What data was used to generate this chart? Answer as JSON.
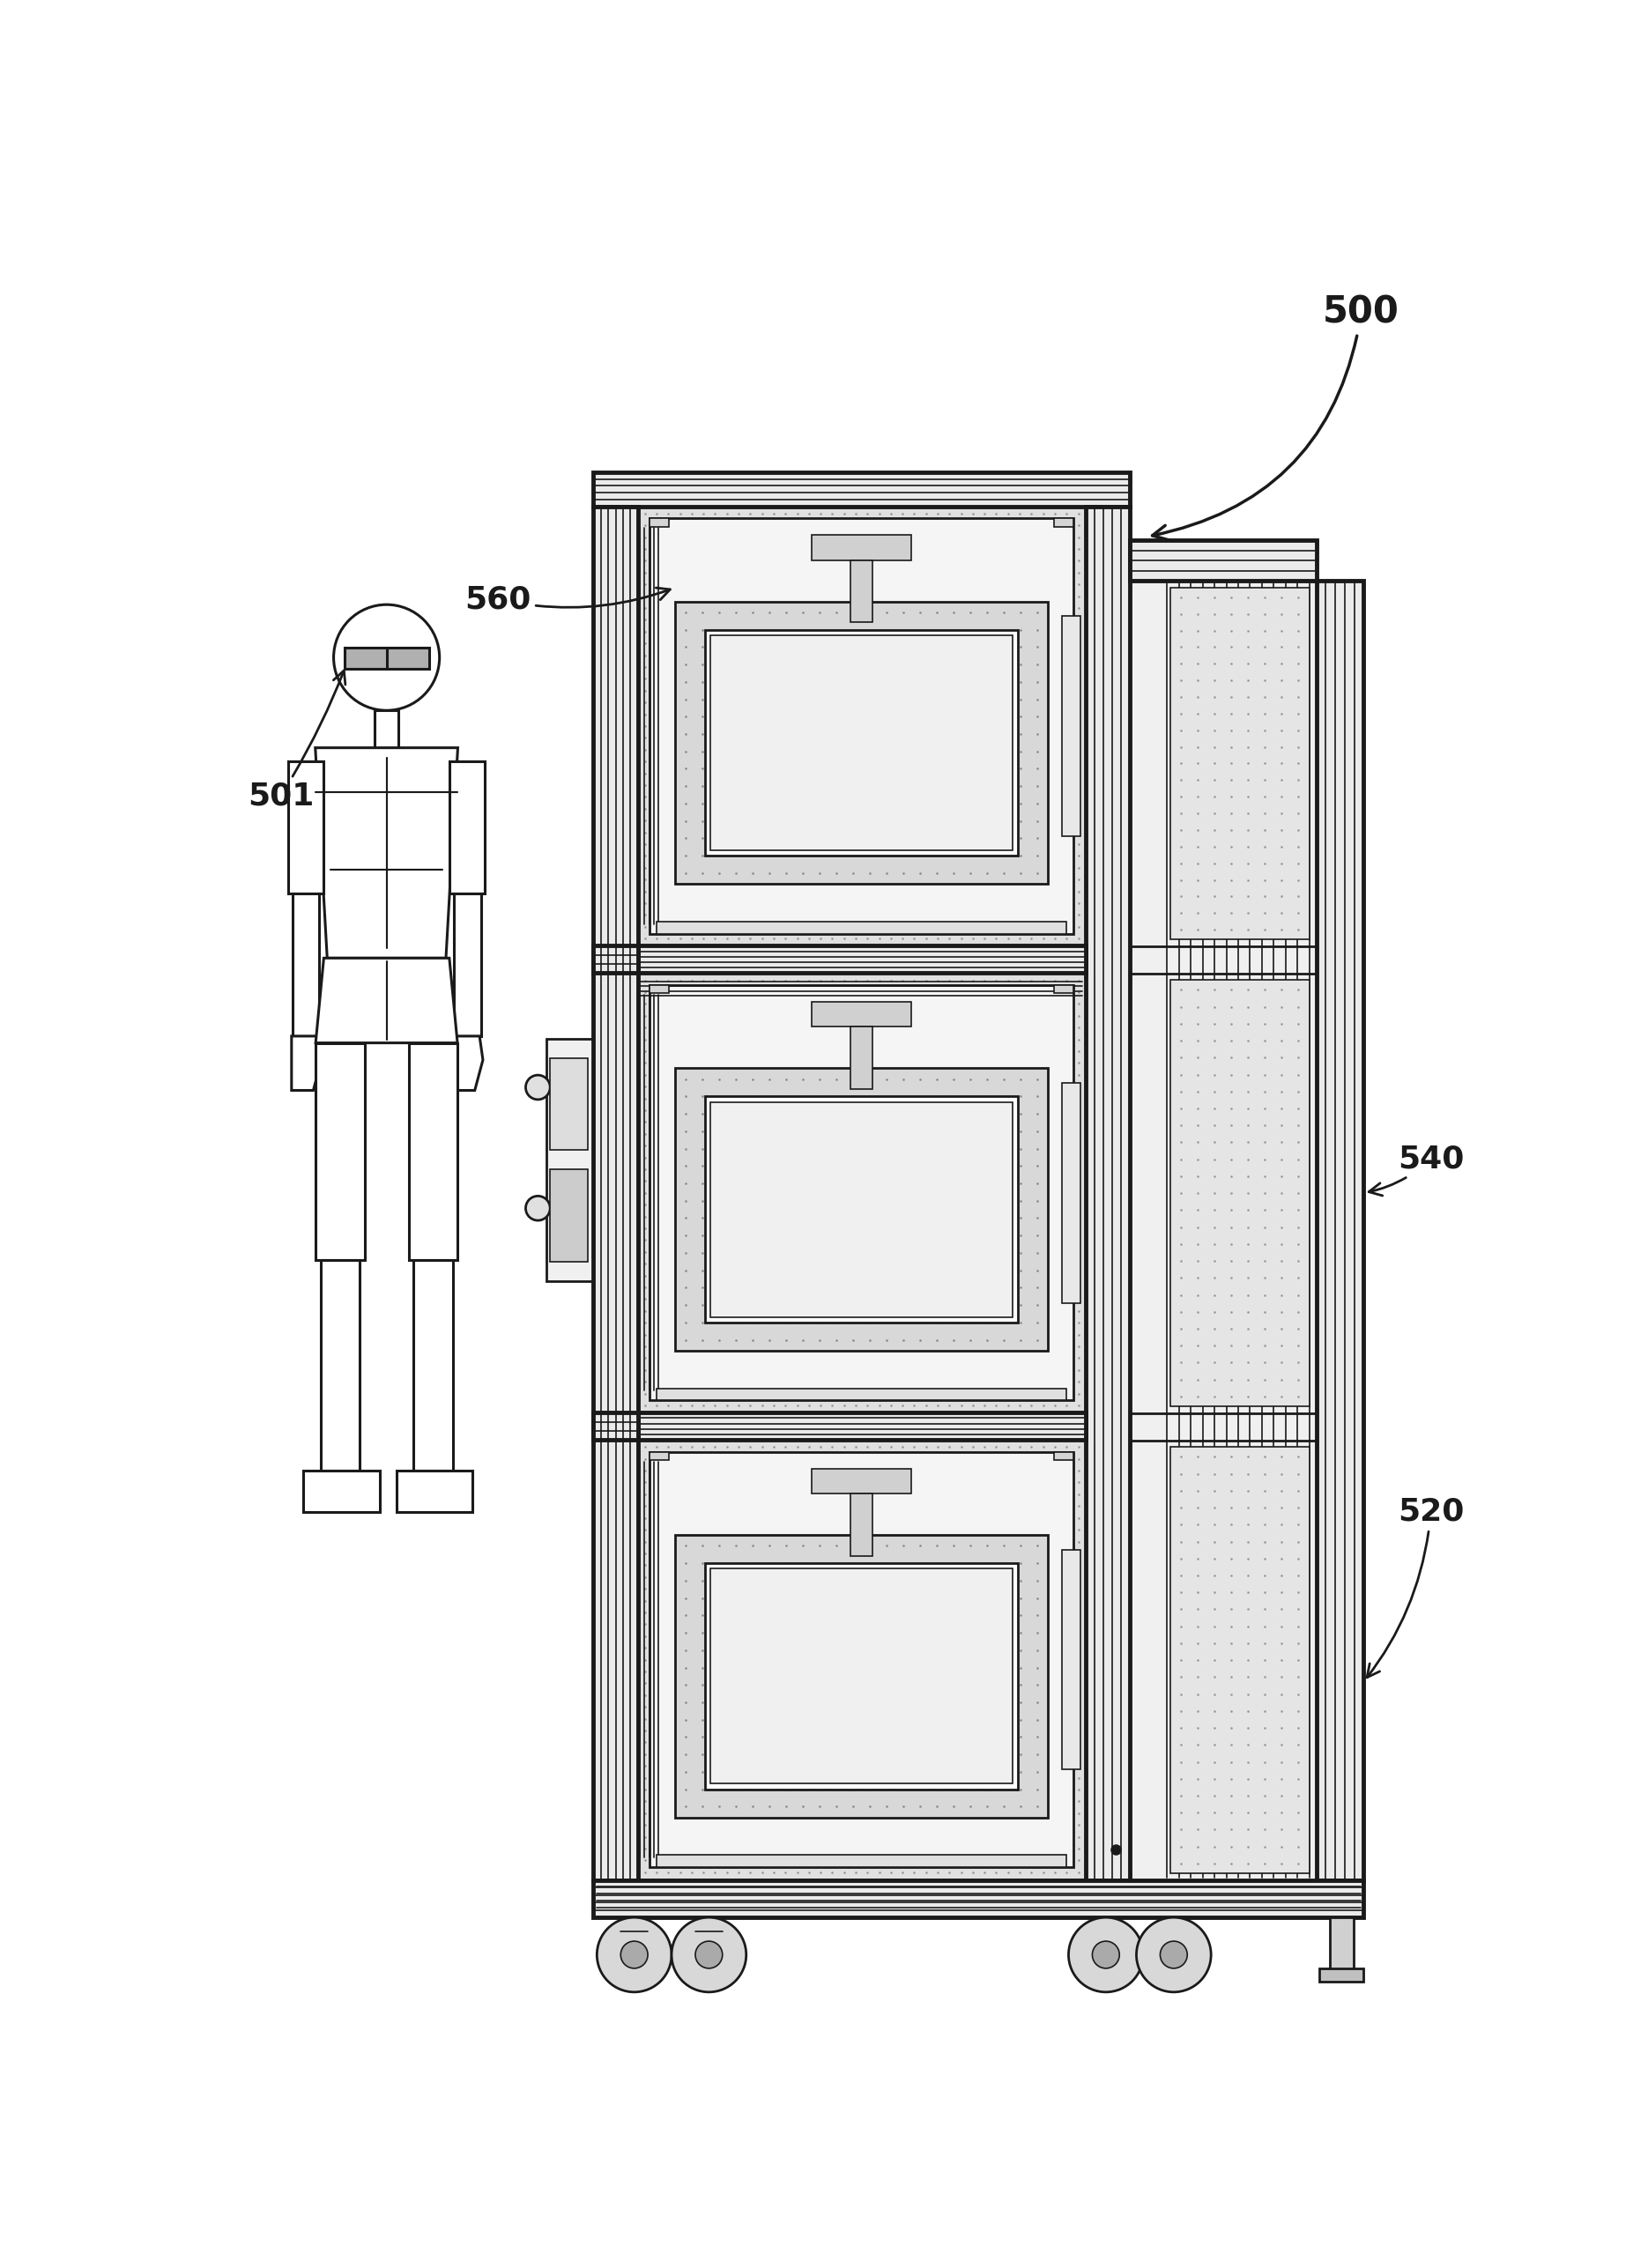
{
  "bg_color": "#ffffff",
  "lc": "#1a1a1a",
  "fc_light": "#f2f2f2",
  "fc_extrusion": "#e8e8e8",
  "fc_dot_bg": "#dcdcdc",
  "fc_bag": "#d0d0d0",
  "fc_white": "#ffffff",
  "label_fontsize": 26,
  "labels": [
    "500",
    "501",
    "520",
    "540",
    "560"
  ],
  "lw_thick": 3.5,
  "lw_main": 2.0,
  "lw_thin": 1.2
}
